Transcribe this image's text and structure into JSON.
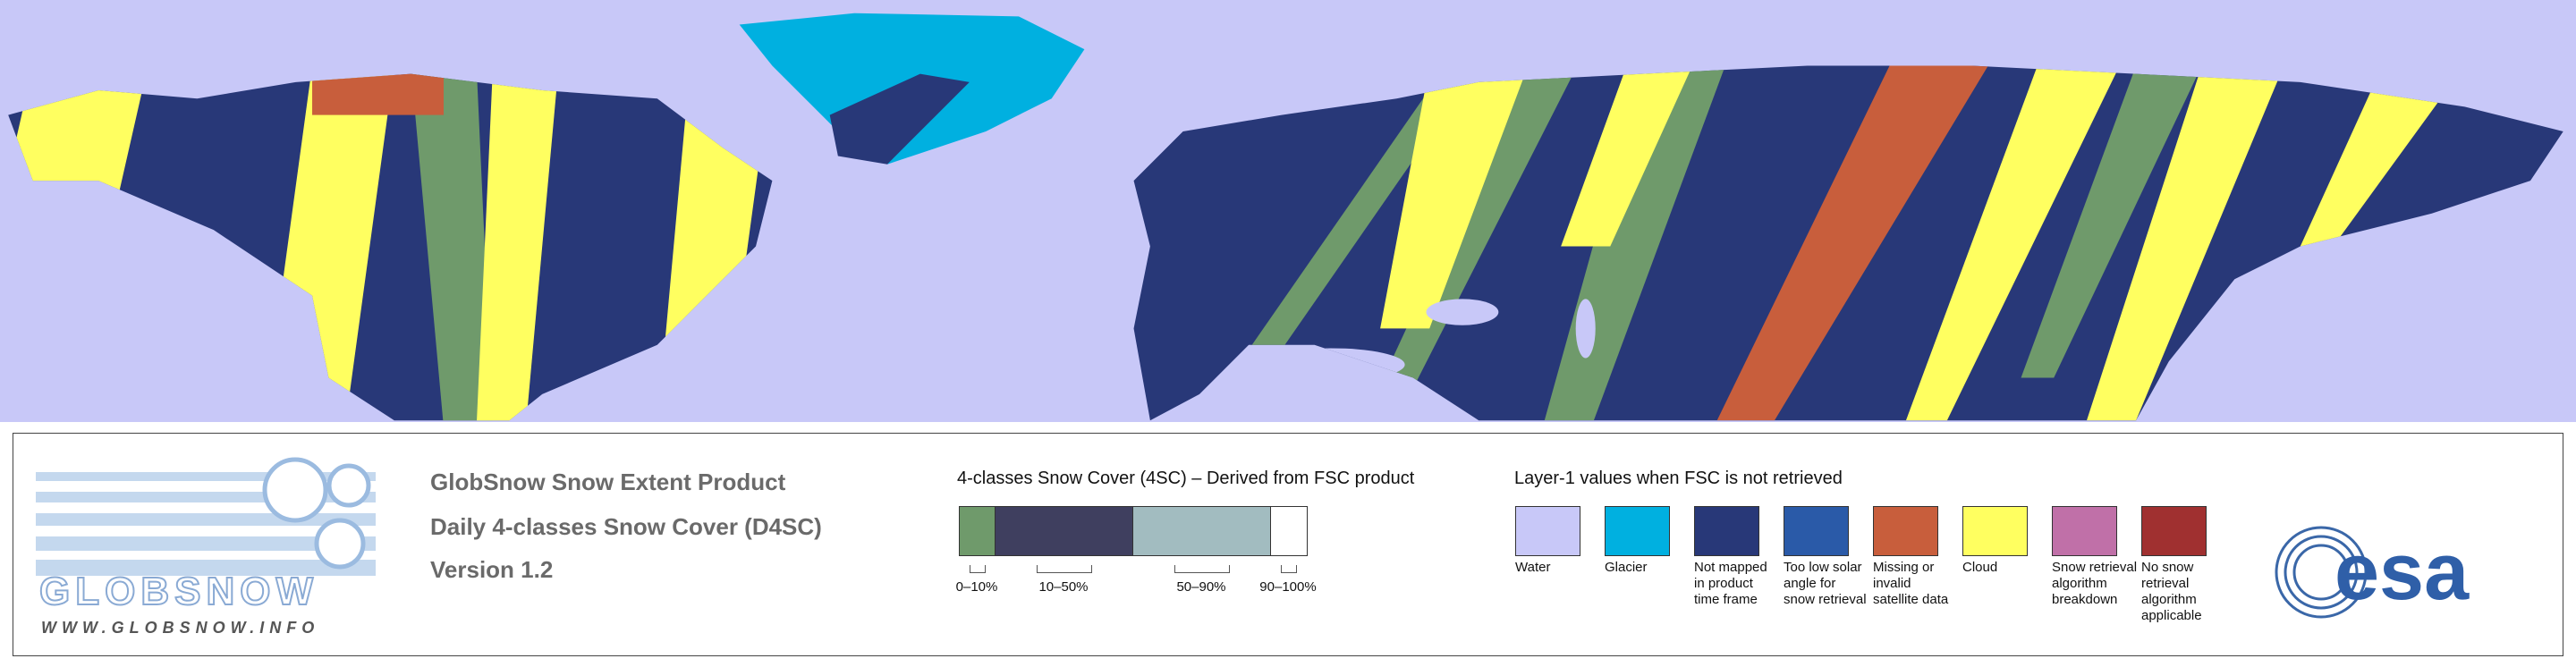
{
  "header": {
    "title": "GlobSnow Snow Extent Product",
    "subtitle": "Daily 4-classes Snow Cover (D4SC)",
    "version": "Version 1.2"
  },
  "logo": {
    "name": "GLOBSNOW",
    "url": "WWW.GLOBSNOW.INFO",
    "agency": "esa"
  },
  "snow_cover": {
    "title": "4-classes Snow Cover (4SC) – Derived from FSC product",
    "classes": [
      {
        "label": "0–10%",
        "color": "#6f9a6b"
      },
      {
        "label": "10–50%",
        "color": "#3f3f5f"
      },
      {
        "label": "50–90%",
        "color": "#a2bcc0"
      },
      {
        "label": "90–100%",
        "color": "#ffffff"
      }
    ]
  },
  "layer1": {
    "title": "Layer-1 values when FSC is not retrieved",
    "items": [
      {
        "label": "Water",
        "color": "#c8c8f8"
      },
      {
        "label": "Glacier",
        "color": "#00b0e0"
      },
      {
        "label": "Not mapped in product time frame",
        "color": "#283878"
      },
      {
        "label": "Too low solar angle for snow retrieval",
        "color": "#2a5aa8"
      },
      {
        "label": "Missing or invalid satellite data",
        "color": "#c85e3c"
      },
      {
        "label": "Cloud",
        "color": "#ffff60"
      },
      {
        "label": "Snow retrieval algorithm breakdown",
        "color": "#c070a8"
      },
      {
        "label": "No snow retrieval algorithm applicable",
        "color": "#a03030"
      }
    ]
  }
}
